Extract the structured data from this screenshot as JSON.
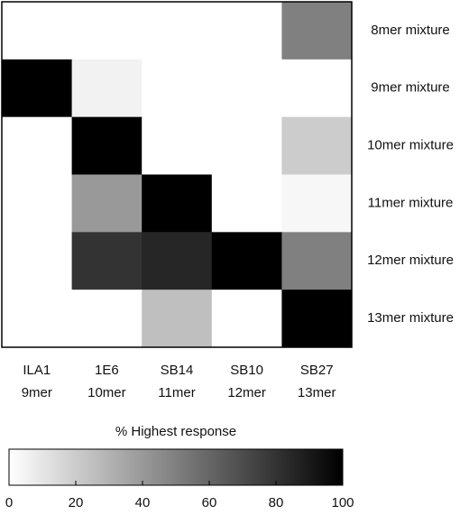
{
  "chart_data": {
    "type": "heatmap",
    "categories": [
      "ILA1",
      "1E6",
      "SB14",
      "SB10",
      "SB27"
    ],
    "category_lengths": [
      "9mer",
      "10mer",
      "11mer",
      "12mer",
      "13mer"
    ],
    "rows": [
      "8mer mixture",
      "9mer mixture",
      "10mer mixture",
      "11mer mixture",
      "12mer mixture",
      "13mer mixture"
    ],
    "values": [
      [
        0,
        0,
        0,
        0,
        50
      ],
      [
        100,
        5,
        0,
        0,
        0
      ],
      [
        0,
        100,
        0,
        0,
        20
      ],
      [
        0,
        40,
        100,
        0,
        3
      ],
      [
        0,
        80,
        85,
        100,
        50
      ],
      [
        0,
        0,
        25,
        0,
        100
      ]
    ],
    "colorbar_label": "% Highest response",
    "colorlim": [
      0,
      100
    ],
    "colorticks": [
      0,
      20,
      40,
      60,
      80,
      100
    ],
    "color_low": "#ffffff",
    "color_high": "#000000"
  }
}
